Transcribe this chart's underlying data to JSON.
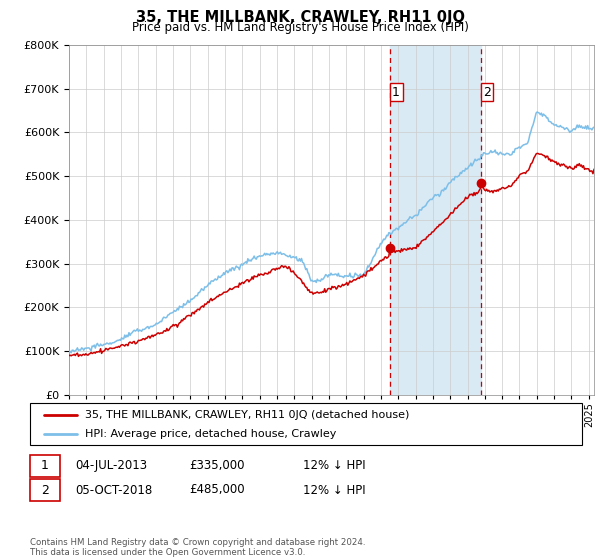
{
  "title": "35, THE MILLBANK, CRAWLEY, RH11 0JQ",
  "subtitle": "Price paid vs. HM Land Registry's House Price Index (HPI)",
  "ylim": [
    0,
    800000
  ],
  "xlim_start": 1995.0,
  "xlim_end": 2025.3,
  "hpi_color": "#7dbfe8",
  "price_color": "#cc0000",
  "vline_color": "#cc0000",
  "shade_color": "#daeaf5",
  "transaction_1_date": 2013.5,
  "transaction_1_price": 335000,
  "transaction_2_date": 2018.75,
  "transaction_2_price": 485000,
  "legend_label_red": "35, THE MILLBANK, CRAWLEY, RH11 0JQ (detached house)",
  "legend_label_blue": "HPI: Average price, detached house, Crawley",
  "note_1_label": "1",
  "note_1_date": "04-JUL-2013",
  "note_1_price": "£335,000",
  "note_1_hpi": "12% ↓ HPI",
  "note_2_label": "2",
  "note_2_date": "05-OCT-2018",
  "note_2_price": "£485,000",
  "note_2_hpi": "12% ↓ HPI",
  "footer": "Contains HM Land Registry data © Crown copyright and database right 2024.\nThis data is licensed under the Open Government Licence v3.0."
}
